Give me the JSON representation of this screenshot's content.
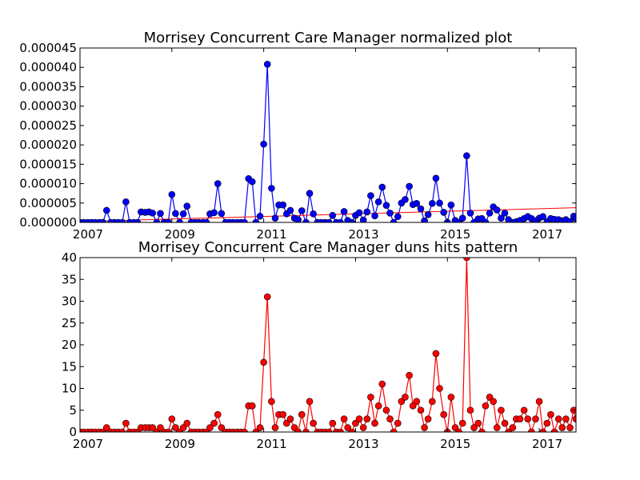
{
  "chart_data": [
    {
      "type": "line",
      "title": "Morrisey Concurrent Care Manager normalized plot",
      "xlabel": "",
      "ylabel": "",
      "xlim": [
        2007.0,
        2017.8
      ],
      "ylim": [
        0,
        4.5e-05
      ],
      "x_ticks": [
        "2007",
        "2009",
        "2011",
        "2013",
        "2015",
        "2017"
      ],
      "y_ticks": [
        "0.000000",
        "0.000005",
        "0.000010",
        "0.000015",
        "0.000020",
        "0.000025",
        "0.000030",
        "0.000035",
        "0.000040",
        "0.000045"
      ],
      "grid": false,
      "colors": {
        "series": "#0000ff",
        "trend": "#ff0000",
        "marker_edge": "#000000"
      },
      "series": [
        {
          "x": [
            2007.0,
            2007.08,
            2007.17,
            2007.25,
            2007.33,
            2007.42,
            2007.5,
            2007.58,
            2007.67,
            2007.75,
            2007.83,
            2007.92,
            2008.0,
            2008.08,
            2008.17,
            2008.25,
            2008.33,
            2008.42,
            2008.5,
            2008.58,
            2008.67,
            2008.75,
            2008.83,
            2008.92,
            2009.0,
            2009.08,
            2009.17,
            2009.25,
            2009.33,
            2009.42,
            2009.5,
            2009.58,
            2009.67,
            2009.75,
            2009.83,
            2009.92,
            2010.0,
            2010.08,
            2010.17,
            2010.25,
            2010.33,
            2010.42,
            2010.5,
            2010.58,
            2010.67,
            2010.75,
            2010.83,
            2010.92,
            2011.0,
            2011.08,
            2011.17,
            2011.25,
            2011.33,
            2011.42,
            2011.5,
            2011.58,
            2011.67,
            2011.75,
            2011.83,
            2011.92,
            2012.0,
            2012.08,
            2012.17,
            2012.25,
            2012.33,
            2012.42,
            2012.5,
            2012.58,
            2012.67,
            2012.75,
            2012.83,
            2012.92,
            2013.0,
            2013.08,
            2013.17,
            2013.25,
            2013.33,
            2013.42,
            2013.5,
            2013.58,
            2013.67,
            2013.75,
            2013.83,
            2013.92,
            2014.0,
            2014.08,
            2014.17,
            2014.25,
            2014.33,
            2014.42,
            2014.5,
            2014.58,
            2014.67,
            2014.75,
            2014.83,
            2014.92,
            2015.0,
            2015.08,
            2015.17,
            2015.25,
            2015.33,
            2015.42,
            2015.5,
            2015.58,
            2015.67,
            2015.75,
            2015.83,
            2015.92,
            2016.0,
            2016.08,
            2016.17,
            2016.25,
            2016.33,
            2016.42,
            2016.5,
            2016.58,
            2016.67,
            2016.75,
            2016.83,
            2016.92,
            2017.0,
            2017.08,
            2017.17,
            2017.25,
            2017.33,
            2017.42,
            2017.5,
            2017.58,
            2017.67,
            2017.75,
            2017.8
          ],
          "y": [
            0,
            0,
            0,
            0,
            0,
            0,
            0,
            3.1e-06,
            0,
            0,
            0,
            0,
            5.3e-06,
            0,
            0,
            0,
            2.7e-06,
            2.6e-06,
            2.7e-06,
            2.4e-06,
            0,
            2.3e-06,
            0,
            0,
            7.2e-06,
            2.3e-06,
            0,
            2.2e-06,
            4.2e-06,
            0,
            0,
            0,
            0,
            0,
            2.2e-06,
            2.5e-06,
            1e-05,
            2.3e-06,
            0,
            0,
            0,
            0,
            0,
            0,
            1.13e-05,
            1.05e-05,
            0,
            1.6e-06,
            2.02e-05,
            4.08e-05,
            8.8e-06,
            1.1e-06,
            4.5e-06,
            4.5e-06,
            2.2e-06,
            3.1e-06,
            1.1e-06,
            7e-07,
            3e-06,
            0,
            7.5e-06,
            2.2e-06,
            0,
            0,
            0,
            0,
            1.8e-06,
            0,
            0,
            2.8e-06,
            5e-07,
            0,
            1.8e-06,
            2.5e-06,
            6e-07,
            2.7e-06,
            6.9e-06,
            1.7e-06,
            5.3e-06,
            9.1e-06,
            4.4e-06,
            2.4e-06,
            0,
            1.5e-06,
            5e-06,
            5.9e-06,
            9.3e-06,
            4.6e-06,
            4.9e-06,
            3.5e-06,
            4e-07,
            2e-06,
            4.9e-06,
            1.14e-05,
            5e-06,
            2.6e-06,
            0,
            4.5e-06,
            5e-07,
            0,
            1.1e-06,
            1.72e-05,
            2.4e-06,
            0,
            9e-07,
            1e-06,
            0,
            2.4e-06,
            4e-06,
            3.2e-06,
            1.1e-06,
            2.4e-06,
            7e-07,
            0,
            2e-07,
            5e-07,
            1e-06,
            1.5e-06,
            1e-06,
            4e-07,
            1.1e-06,
            1.5e-06,
            2e-07,
            1e-06,
            8e-07,
            7e-07,
            4e-07,
            7e-07,
            2e-07,
            1.6e-06,
            1e-06
          ]
        }
      ],
      "trend": {
        "x": [
          2007.0,
          2017.8
        ],
        "y": [
          2e-07,
          3.8e-06
        ]
      }
    },
    {
      "type": "line",
      "title": "Morrisey Concurrent Care Manager duns hits pattern",
      "xlabel": "",
      "ylabel": "",
      "xlim": [
        2007.0,
        2017.8
      ],
      "ylim": [
        0,
        40
      ],
      "x_ticks": [
        "2007",
        "2009",
        "2011",
        "2013",
        "2015",
        "2017"
      ],
      "y_ticks": [
        "0",
        "5",
        "10",
        "15",
        "20",
        "25",
        "30",
        "35",
        "40"
      ],
      "grid": false,
      "colors": {
        "series": "#ff0000",
        "marker_edge": "#000000"
      },
      "series": [
        {
          "x": [
            2007.0,
            2007.08,
            2007.17,
            2007.25,
            2007.33,
            2007.42,
            2007.5,
            2007.58,
            2007.67,
            2007.75,
            2007.83,
            2007.92,
            2008.0,
            2008.08,
            2008.17,
            2008.25,
            2008.33,
            2008.42,
            2008.5,
            2008.58,
            2008.67,
            2008.75,
            2008.83,
            2008.92,
            2009.0,
            2009.08,
            2009.17,
            2009.25,
            2009.33,
            2009.42,
            2009.5,
            2009.58,
            2009.67,
            2009.75,
            2009.83,
            2009.92,
            2010.0,
            2010.08,
            2010.17,
            2010.25,
            2010.33,
            2010.42,
            2010.5,
            2010.58,
            2010.67,
            2010.75,
            2010.83,
            2010.92,
            2011.0,
            2011.08,
            2011.17,
            2011.25,
            2011.33,
            2011.42,
            2011.5,
            2011.58,
            2011.67,
            2011.75,
            2011.83,
            2011.92,
            2012.0,
            2012.08,
            2012.17,
            2012.25,
            2012.33,
            2012.42,
            2012.5,
            2012.58,
            2012.67,
            2012.75,
            2012.83,
            2012.92,
            2013.0,
            2013.08,
            2013.17,
            2013.25,
            2013.33,
            2013.42,
            2013.5,
            2013.58,
            2013.67,
            2013.75,
            2013.83,
            2013.92,
            2014.0,
            2014.08,
            2014.17,
            2014.25,
            2014.33,
            2014.42,
            2014.5,
            2014.58,
            2014.67,
            2014.75,
            2014.83,
            2014.92,
            2015.0,
            2015.08,
            2015.17,
            2015.25,
            2015.33,
            2015.42,
            2015.5,
            2015.58,
            2015.67,
            2015.75,
            2015.83,
            2015.92,
            2016.0,
            2016.08,
            2016.17,
            2016.25,
            2016.33,
            2016.42,
            2016.5,
            2016.58,
            2016.67,
            2016.75,
            2016.83,
            2016.92,
            2017.0,
            2017.08,
            2017.17,
            2017.25,
            2017.33,
            2017.42,
            2017.5,
            2017.58,
            2017.67,
            2017.75,
            2017.8
          ],
          "y": [
            0,
            0,
            0,
            0,
            0,
            0,
            0,
            1,
            0,
            0,
            0,
            0,
            2,
            0,
            0,
            0,
            1,
            1,
            1,
            1,
            0,
            1,
            0,
            0,
            3,
            1,
            0,
            1,
            2,
            0,
            0,
            0,
            0,
            0,
            1,
            2,
            4,
            1,
            0,
            0,
            0,
            0,
            0,
            0,
            6,
            6,
            0,
            1,
            16,
            31,
            7,
            1,
            4,
            4,
            2,
            3,
            1,
            0,
            4,
            0,
            7,
            2,
            0,
            0,
            0,
            0,
            2,
            0,
            0,
            3,
            1,
            0,
            2,
            3,
            1,
            3,
            8,
            2,
            6,
            11,
            5,
            3,
            0,
            2,
            7,
            8,
            13,
            6,
            7,
            5,
            1,
            3,
            7,
            18,
            10,
            4,
            0,
            8,
            1,
            0,
            2,
            40,
            5,
            1,
            2,
            0,
            6,
            8,
            7,
            1,
            5,
            2,
            0,
            1,
            3,
            3,
            5,
            3,
            0,
            3,
            7,
            0,
            2,
            4,
            0,
            3,
            1,
            3,
            1,
            5,
            3
          ]
        }
      ]
    }
  ]
}
